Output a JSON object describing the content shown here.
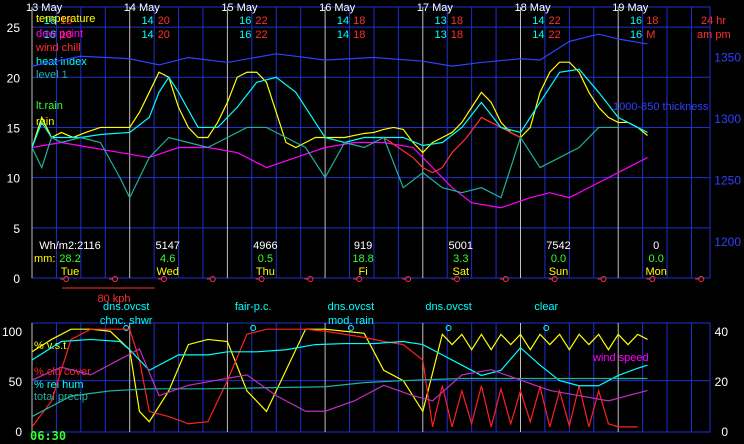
{
  "chart_data": [
    {
      "type": "line",
      "panel": "temperature",
      "days": [
        {
          "date": "13 May",
          "row1_hi": "16",
          "row1_lo": "18",
          "row2_hi": "16",
          "row2_lo": "18",
          "wh_m2": "Wh/m2:2116",
          "rain_mm": "28.2",
          "dow": "Tue"
        },
        {
          "date": "14 May",
          "row1_hi": "14",
          "row1_lo": "20",
          "row2_hi": "14",
          "row2_lo": "20",
          "wh_m2": "5147",
          "rain_mm": "4.6",
          "dow": "Wed"
        },
        {
          "date": "15 May",
          "row1_hi": "16",
          "row1_lo": "22",
          "row2_hi": "16",
          "row2_lo": "22",
          "wh_m2": "4966",
          "rain_mm": "0.5",
          "dow": "Thu"
        },
        {
          "date": "16 May",
          "row1_hi": "14",
          "row1_lo": "18",
          "row2_hi": "14",
          "row2_lo": "18",
          "wh_m2": "919",
          "rain_mm": "18.8",
          "dow": "Fi"
        },
        {
          "date": "17 May",
          "row1_hi": "13",
          "row1_lo": "18",
          "row2_hi": "13",
          "row2_lo": "18",
          "wh_m2": "5001",
          "rain_mm": "3.3",
          "dow": "Sat"
        },
        {
          "date": "18 May",
          "row1_hi": "14",
          "row1_lo": "22",
          "row2_hi": "14",
          "row2_lo": "22",
          "wh_m2": "7542",
          "rain_mm": "0.0",
          "dow": "Sun"
        },
        {
          "date": "19 May",
          "row1_hi": "16",
          "row1_lo": "18",
          "row2_hi": "16",
          "row2_lo": "M",
          "wh_m2": "0",
          "rain_mm": "0.0",
          "dow": "Mon"
        }
      ],
      "corner_24hr": "24 hr",
      "corner_ampm": "am pm",
      "legend": [
        "temperature",
        "dew point",
        "wind chill",
        "heat index",
        "level 1",
        "lt.rain",
        "rain"
      ],
      "mm_label": "mm:",
      "wind_scale_label": "80 kph",
      "thickness_label": "1000-850 thickness",
      "y_left_ticks": [
        "0",
        "5",
        "10",
        "15",
        "20",
        "25"
      ],
      "y_right_ticks": [
        "1200",
        "1250",
        "1300",
        "1350"
      ],
      "ylim_left": [
        0,
        27
      ],
      "ylim_right": [
        1170,
        1390
      ],
      "x_days": [
        0,
        7
      ],
      "series": [
        {
          "name": "temperature",
          "color": "#ffff00",
          "x": [
            0,
            0.1,
            0.2,
            0.3,
            0.42,
            0.55,
            0.7,
            0.85,
            1.0,
            1.1,
            1.2,
            1.3,
            1.4,
            1.5,
            1.6,
            1.7,
            1.8,
            1.9,
            2.0,
            2.1,
            2.2,
            2.3,
            2.4,
            2.5,
            2.6,
            2.7,
            2.8,
            2.9,
            3.0,
            3.1,
            3.2,
            3.3,
            3.4,
            3.5,
            3.6,
            3.7,
            3.8,
            3.9,
            4.0,
            4.1,
            4.2,
            4.3,
            4.4,
            4.5,
            4.6,
            4.7,
            4.8,
            4.9,
            5.0,
            5.1,
            5.2,
            5.3,
            5.4,
            5.5,
            5.6,
            5.7,
            5.8,
            5.9,
            6.0,
            6.1,
            6.2,
            6.3
          ],
          "y": [
            13,
            16,
            14,
            14.5,
            14,
            14.5,
            15,
            15,
            15,
            16.5,
            18.5,
            20.5,
            20,
            17,
            15,
            14,
            14,
            15.5,
            17.5,
            20,
            20.5,
            20.5,
            19.5,
            16.5,
            13.5,
            13,
            13.5,
            14,
            14,
            14,
            14,
            14.2,
            14.4,
            14.5,
            14.8,
            15,
            14.8,
            13.5,
            12.5,
            13.5,
            14,
            14.5,
            15.5,
            17,
            18.5,
            17.5,
            15.5,
            14.5,
            14,
            15,
            18.5,
            20.5,
            21.5,
            21.5,
            20.5,
            18.5,
            17,
            16,
            15.5,
            15.5,
            15,
            14.2
          ]
        },
        {
          "name": "dew point",
          "color": "#ff00ff",
          "x": [
            0,
            0.3,
            0.6,
            0.9,
            1.2,
            1.5,
            1.8,
            2.1,
            2.4,
            2.7,
            3.0,
            3.3,
            3.6,
            3.9,
            4.1,
            4.3,
            4.5,
            4.8,
            5.1,
            5.3,
            5.5,
            5.8,
            6.1,
            6.3
          ],
          "y": [
            13,
            13.5,
            13,
            12.5,
            12,
            13,
            13,
            12.5,
            11,
            12,
            13,
            13.5,
            13.5,
            13,
            11,
            9,
            7.5,
            7,
            8,
            8.5,
            8,
            9.5,
            11,
            12
          ]
        },
        {
          "name": "wind chill",
          "color": "#ff3030",
          "x": [
            3.6,
            3.75,
            3.9,
            4.0,
            4.1,
            4.2,
            4.3,
            4.45,
            4.6,
            4.8,
            5.0
          ],
          "y": [
            14,
            13,
            12,
            11,
            10.5,
            11,
            12.5,
            14,
            16,
            15,
            14
          ]
        },
        {
          "name": "heat index",
          "color": "#00ffff",
          "x": [
            0,
            0.1,
            0.2,
            0.3,
            0.5,
            0.7,
            1.0,
            1.2,
            1.3,
            1.4,
            1.5,
            1.7,
            1.9,
            2.1,
            2.3,
            2.5,
            2.7,
            3.0,
            3.2,
            3.4,
            3.6,
            3.8,
            4.0,
            4.2,
            4.4,
            4.6,
            4.8,
            5.0,
            5.2,
            5.4,
            5.6,
            5.8,
            6.0,
            6.3
          ],
          "y": [
            13,
            15.5,
            14,
            14,
            14,
            14.3,
            14.5,
            16,
            18.5,
            20,
            18.5,
            15,
            15,
            17,
            19.5,
            20,
            18.5,
            14,
            13.5,
            14,
            14,
            14,
            13.2,
            13.5,
            15,
            17.5,
            15,
            14.5,
            17.5,
            20.5,
            20.8,
            18.5,
            16,
            14.5
          ]
        },
        {
          "name": "level 1",
          "color": "#20b0a0",
          "x": [
            0,
            0.1,
            0.2,
            0.3,
            0.5,
            0.7,
            0.9,
            1.0,
            1.2,
            1.4,
            1.6,
            1.8,
            2.0,
            2.2,
            2.4,
            2.6,
            2.8,
            3.0,
            3.2,
            3.4,
            3.6,
            3.8,
            4.0,
            4.2,
            4.4,
            4.6,
            4.8,
            5.0,
            5.2,
            5.4,
            5.6,
            5.8,
            6.0
          ],
          "y": [
            13,
            11,
            14,
            13.5,
            14,
            13.5,
            10,
            8,
            12,
            14,
            13.5,
            13,
            14,
            15,
            15,
            14,
            13,
            10,
            13.5,
            13,
            14,
            9,
            10.5,
            9,
            8.5,
            9,
            8,
            14,
            11,
            12,
            13,
            15,
            15
          ]
        },
        {
          "name": "thickness",
          "color": "#3040ff",
          "axis": "right",
          "x": [
            0,
            0.5,
            1.0,
            1.3,
            1.6,
            2.0,
            2.5,
            3.0,
            3.5,
            4.0,
            4.3,
            4.6,
            5.0,
            5.2,
            5.5,
            5.8,
            6.0,
            6.3
          ],
          "y": [
            1342,
            1350,
            1348,
            1343,
            1349,
            1345,
            1352,
            1347,
            1349,
            1346,
            1342,
            1345,
            1348,
            1347,
            1362,
            1368,
            1364,
            1360
          ]
        }
      ]
    },
    {
      "type": "line",
      "panel": "cloud-humidity",
      "y_left_ticks": [
        "0",
        "50",
        "100"
      ],
      "y_right_ticks": [
        "0",
        "20",
        "40"
      ],
      "ylim_left": [
        0,
        106
      ],
      "ylim_right": [
        0,
        42
      ],
      "time_label": "06:30",
      "conditions": [
        {
          "day": 0.35,
          "row": 1,
          "text": "dns.ovcst"
        },
        {
          "day": 0.35,
          "row": 2,
          "text": "chnc. shwr"
        },
        {
          "day": 1.65,
          "row": 1,
          "text": "fair-p.c."
        },
        {
          "day": 2.65,
          "row": 1,
          "text": "dns.ovcst"
        },
        {
          "day": 2.65,
          "row": 2,
          "text": "mod. rain"
        },
        {
          "day": 3.65,
          "row": 1,
          "text": "dns.ovcst"
        },
        {
          "day": 4.65,
          "row": 1,
          "text": "clear"
        }
      ],
      "legend": [
        "% v.s.t.",
        "% cld cover",
        "% rel hum",
        "total precip",
        "wind speed"
      ],
      "series": [
        {
          "name": "% v.s.t.",
          "color": "#ffff00",
          "x": [
            0,
            0.2,
            0.4,
            0.6,
            0.8,
            1.0,
            1.1,
            1.2,
            1.4,
            1.6,
            1.8,
            2.0,
            2.2,
            2.4,
            2.6,
            2.8,
            3.0,
            3.2,
            3.4,
            3.6,
            3.8,
            4.0,
            4.2,
            4.3,
            4.4,
            4.5,
            4.6,
            4.7,
            4.8,
            4.9,
            5.0,
            5.1,
            5.2,
            5.3,
            5.4,
            5.5,
            5.6,
            5.7,
            5.8,
            5.9,
            6.0,
            6.1,
            6.2,
            6.3
          ],
          "y": [
            78,
            90,
            100,
            100,
            98,
            80,
            20,
            10,
            40,
            85,
            90,
            88,
            40,
            20,
            60,
            100,
            100,
            98,
            96,
            60,
            50,
            20,
            95,
            85,
            95,
            80,
            95,
            80,
            95,
            85,
            95,
            80,
            95,
            85,
            95,
            80,
            95,
            85,
            95,
            80,
            95,
            85,
            95,
            90
          ]
        },
        {
          "name": "% cld cover",
          "color": "#ff2020",
          "x": [
            0,
            0.2,
            0.4,
            0.6,
            0.8,
            1.0,
            1.1,
            1.2,
            1.4,
            1.6,
            1.8,
            2.0,
            2.2,
            2.4,
            2.6,
            2.8,
            3.0,
            3.2,
            3.4,
            3.6,
            3.8,
            4.0,
            4.1,
            4.2,
            4.3,
            4.4,
            4.5,
            4.6,
            4.7,
            4.8,
            4.9,
            5.0,
            5.1,
            5.2,
            5.3,
            5.4,
            5.5,
            5.6,
            5.7,
            5.8,
            5.9,
            6.0,
            6.2
          ],
          "y": [
            5,
            30,
            90,
            100,
            100,
            100,
            70,
            20,
            15,
            8,
            10,
            50,
            95,
            100,
            100,
            100,
            98,
            95,
            92,
            88,
            85,
            70,
            5,
            45,
            5,
            40,
            8,
            45,
            5,
            42,
            8,
            40,
            10,
            44,
            5,
            40,
            6,
            45,
            5,
            40,
            8,
            5,
            5
          ]
        },
        {
          "name": "% rel hum",
          "color": "#00ffff",
          "x": [
            0,
            0.3,
            0.6,
            0.9,
            1.0,
            1.2,
            1.5,
            1.8,
            2.0,
            2.3,
            2.6,
            2.9,
            3.2,
            3.5,
            3.8,
            4.0,
            4.2,
            4.4,
            4.6,
            4.8,
            5.0,
            5.2,
            5.4,
            5.6,
            5.8,
            6.0,
            6.2,
            6.3
          ],
          "y": [
            70,
            88,
            90,
            88,
            80,
            60,
            75,
            75,
            78,
            78,
            80,
            85,
            86,
            86,
            88,
            85,
            75,
            65,
            55,
            60,
            82,
            65,
            50,
            45,
            45,
            55,
            62,
            65
          ]
        },
        {
          "name": "total precip",
          "color": "#20b0a0",
          "x": [
            0,
            0.4,
            0.8,
            1.2,
            1.8,
            2.4,
            3.0,
            3.4,
            3.8,
            4.4,
            5.0,
            5.6,
            6.3
          ],
          "y": [
            15,
            35,
            40,
            42,
            42,
            43,
            44,
            48,
            50,
            52,
            52,
            52,
            52
          ]
        },
        {
          "name": "wind speed",
          "color": "#c030c0",
          "x": [
            0,
            0.3,
            0.6,
            0.9,
            1.1,
            1.3,
            1.6,
            1.9,
            2.2,
            2.5,
            2.8,
            3.0,
            3.3,
            3.6,
            3.9,
            4.1,
            4.4,
            4.7,
            5.0,
            5.3,
            5.6,
            5.9,
            6.2,
            6.3
          ],
          "y": [
            20,
            25,
            22,
            28,
            32,
            14,
            18,
            20,
            22,
            14,
            8,
            8,
            12,
            18,
            14,
            12,
            22,
            24,
            20,
            16,
            14,
            12,
            15,
            16
          ]
        }
      ]
    }
  ]
}
